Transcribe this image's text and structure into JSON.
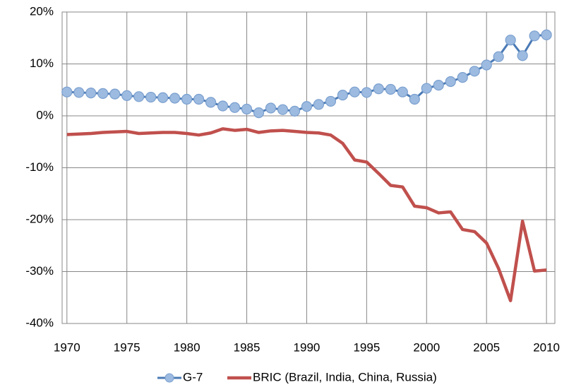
{
  "chart_data": {
    "type": "line",
    "x": [
      1970,
      1971,
      1972,
      1973,
      1974,
      1975,
      1976,
      1977,
      1978,
      1979,
      1980,
      1981,
      1982,
      1983,
      1984,
      1985,
      1986,
      1987,
      1988,
      1989,
      1990,
      1991,
      1992,
      1993,
      1994,
      1995,
      1996,
      1997,
      1998,
      1999,
      2000,
      2001,
      2002,
      2003,
      2004,
      2005,
      2006,
      2007,
      2008,
      2009,
      2010
    ],
    "series": [
      {
        "name": "G-7",
        "color": "#4a7ab5",
        "marker_color": "#9dbbe0",
        "values": [
          4.6,
          4.5,
          4.4,
          4.3,
          4.2,
          3.9,
          3.7,
          3.6,
          3.5,
          3.4,
          3.2,
          3.2,
          2.6,
          1.9,
          1.6,
          1.3,
          0.6,
          1.5,
          1.2,
          0.9,
          1.8,
          2.2,
          2.8,
          4.0,
          4.6,
          4.5,
          5.2,
          5.1,
          4.6,
          3.2,
          5.3,
          5.9,
          6.6,
          7.4,
          8.6,
          9.8,
          11.4,
          14.6,
          11.6,
          15.4,
          15.6
        ]
      },
      {
        "name": "BRIC (Brazil, India, China, Russia)",
        "color": "#c0504d",
        "values": [
          -3.6,
          -3.5,
          -3.4,
          -3.2,
          -3.1,
          -3.0,
          -3.4,
          -3.3,
          -3.2,
          -3.2,
          -3.4,
          -3.7,
          -3.3,
          -2.5,
          -2.8,
          -2.6,
          -3.2,
          -2.9,
          -2.8,
          -3.0,
          -3.2,
          -3.3,
          -3.7,
          -5.3,
          -8.5,
          -8.9,
          -11.1,
          -13.4,
          -13.7,
          -17.4,
          -17.7,
          -18.7,
          -18.5,
          -21.9,
          -22.3,
          -24.5,
          -29.4,
          -35.6,
          -20.3,
          -29.9,
          -29.7
        ]
      }
    ],
    "xlim": [
      1969.6,
      2010.7
    ],
    "xticks": [
      1970,
      1975,
      1980,
      1985,
      1990,
      1995,
      2000,
      2005,
      2010
    ],
    "ylim": [
      -40,
      20
    ],
    "yticks": [
      {
        "value": -40,
        "label": "-40%"
      },
      {
        "value": -30,
        "label": "-30%"
      },
      {
        "value": -20,
        "label": "-20%"
      },
      {
        "value": -10,
        "label": "-10%"
      },
      {
        "value": 0,
        "label": "0%"
      },
      {
        "value": 10,
        "label": "10%"
      },
      {
        "value": 20,
        "label": "20%"
      }
    ],
    "grid": true,
    "legend": "bottom"
  }
}
